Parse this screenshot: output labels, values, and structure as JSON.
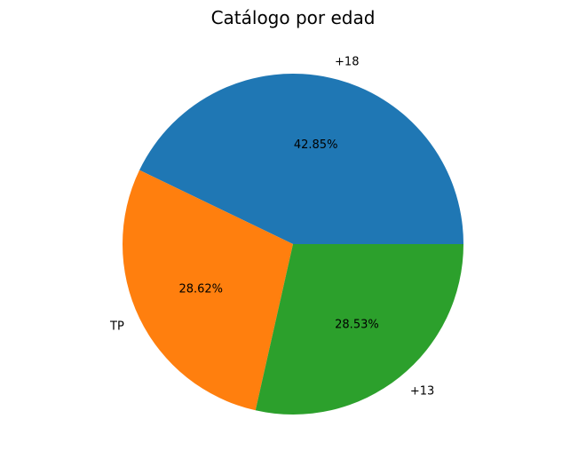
{
  "chart_data": {
    "type": "pie",
    "title": "Catálogo por edad",
    "categories": [
      "+18",
      "TP",
      "+13"
    ],
    "values": [
      42.85,
      28.62,
      28.53
    ],
    "value_labels": [
      "42.85%",
      "28.62%",
      "28.53%"
    ],
    "colors": [
      "#1f77b4",
      "#ff7f0e",
      "#2ca02c"
    ],
    "start_angle_deg": 0,
    "direction": "counterclockwise",
    "legend": "none"
  }
}
